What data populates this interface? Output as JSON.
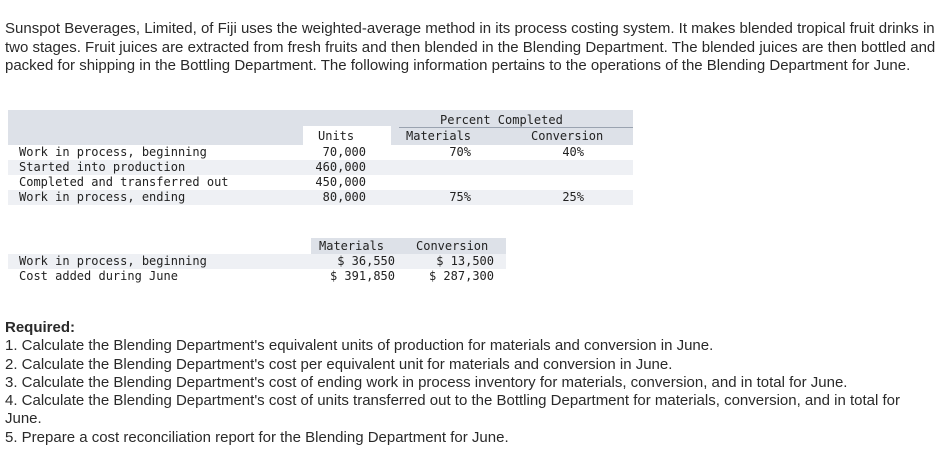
{
  "intro": "Sunspot Beverages, Limited, of Fiji uses the weighted-average method in its process costing system. It makes blended tropical fruit drinks in two stages. Fruit juices are extracted from fresh fruits and then blended in the Blending Department. The blended juices are then bottled and packed for shipping in the Bottling Department. The following information pertains to the operations of the Blending Department for June.",
  "units_table": {
    "header_group": "Percent Completed",
    "headers": {
      "units": "Units",
      "materials": "Materials",
      "conversion": "Conversion"
    },
    "rows": [
      {
        "label": "Work in process, beginning",
        "units": "70,000",
        "materials": "70%",
        "conversion": "40%"
      },
      {
        "label": "Started into production",
        "units": "460,000",
        "materials": "",
        "conversion": ""
      },
      {
        "label": "Completed and transferred out",
        "units": "450,000",
        "materials": "",
        "conversion": ""
      },
      {
        "label": "Work in process, ending",
        "units": "80,000",
        "materials": "75%",
        "conversion": "25%"
      }
    ]
  },
  "cost_table": {
    "headers": {
      "materials": "Materials",
      "conversion": "Conversion"
    },
    "rows": [
      {
        "label": "Work in process, beginning",
        "materials": "$ 36,550",
        "conversion": "$ 13,500"
      },
      {
        "label": "Cost added during June",
        "materials": "$ 391,850",
        "conversion": "$ 287,300"
      }
    ]
  },
  "required": {
    "title": "Required:",
    "items": [
      "1. Calculate the Blending Department's equivalent units of production for materials and conversion in June.",
      "2. Calculate the Blending Department's cost per equivalent unit for materials and conversion in June.",
      "3. Calculate the Blending Department's cost of ending work in process inventory for materials, conversion, and in total for June.",
      "4. Calculate the Blending Department's cost of units transferred out to the Bottling Department for materials, conversion, and in total for June.",
      "5. Prepare a cost reconciliation report for the Blending Department for June."
    ]
  }
}
